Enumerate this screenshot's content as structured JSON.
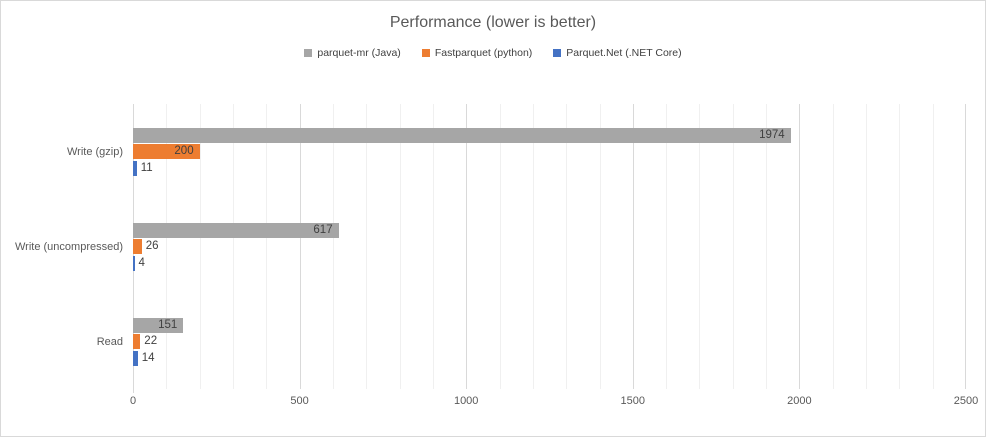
{
  "title": "Performance (lower is better)",
  "legend": {
    "items": [
      {
        "label": "parquet-mr (Java)",
        "color": "#A6A6A6"
      },
      {
        "label": "Fastparquet (python)",
        "color": "#ED7D31"
      },
      {
        "label": "Parquet.Net (.NET Core)",
        "color": "#4472C4"
      }
    ]
  },
  "chart_data": {
    "type": "bar",
    "orientation": "horizontal",
    "title": "Performance (lower is better)",
    "categories": [
      "Write (gzip)",
      "Write (uncompressed)",
      "Read"
    ],
    "series": [
      {
        "name": "parquet-mr (Java)",
        "color": "#A6A6A6",
        "values": [
          1974,
          617,
          151
        ]
      },
      {
        "name": "Fastparquet (python)",
        "color": "#ED7D31",
        "values": [
          200,
          26,
          22
        ]
      },
      {
        "name": "Parquet.Net (.NET Core)",
        "color": "#4472C4",
        "values": [
          11,
          4,
          14
        ]
      }
    ],
    "data_labels": true,
    "xlim": [
      0,
      2500
    ],
    "x_ticks": [
      0,
      500,
      1000,
      1500,
      2000,
      2500
    ],
    "minor_grid_step": 100,
    "major_grid_step": 500,
    "grid": true,
    "legend_position": "top",
    "colors": {
      "title_text": "#595959",
      "axis_text": "#595959",
      "label_text": "#404040",
      "minor_gridline": "#F0F0F0",
      "major_gridline": "#D9D9D9",
      "border": "#D9D9D9"
    }
  }
}
